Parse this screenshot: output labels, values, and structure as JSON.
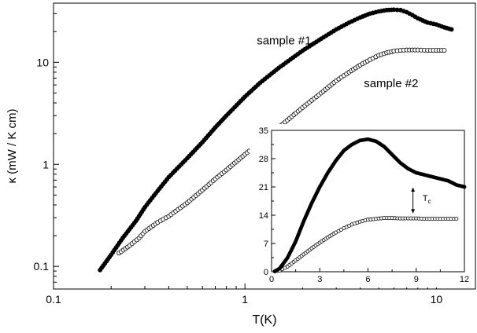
{
  "chart_data": [
    {
      "type": "scatter",
      "xscale": "log",
      "yscale": "log",
      "xlim": [
        0.1,
        16
      ],
      "ylim": [
        0.06,
        38
      ],
      "xlabel": "T(K)",
      "ylabel": "κ (mW / K cm)",
      "xticks": [
        0.1,
        1,
        10
      ],
      "xtick_labels": [
        "0.1",
        "1",
        "10"
      ],
      "yticks": [
        0.1,
        1,
        10
      ],
      "ytick_labels": [
        "0.1",
        "1",
        "10"
      ],
      "grid": false,
      "legend": "none",
      "series": [
        {
          "name": "sample #1",
          "marker": "filled-circle",
          "x": [
            0.175,
            0.2,
            0.23,
            0.27,
            0.3,
            0.35,
            0.4,
            0.5,
            0.6,
            0.7,
            0.8,
            1.0,
            1.2,
            1.5,
            2.0,
            2.5,
            3.0,
            3.5,
            4.0,
            4.5,
            5.0,
            5.5,
            6.0,
            6.5,
            7.0,
            7.5,
            8.0,
            9.0,
            10.0,
            11.0,
            12.0
          ],
          "y": [
            0.092,
            0.13,
            0.19,
            0.28,
            0.38,
            0.55,
            0.75,
            1.15,
            1.65,
            2.3,
            3.0,
            4.6,
            6.3,
            8.8,
            13.0,
            17.0,
            21.0,
            24.5,
            27.5,
            30.0,
            31.5,
            32.5,
            32.8,
            32.5,
            31.0,
            29.0,
            27.0,
            24.5,
            23.5,
            22.0,
            21.0
          ]
        },
        {
          "name": "sample #2",
          "marker": "open-circle",
          "x": [
            0.22,
            0.25,
            0.28,
            0.3,
            0.35,
            0.4,
            0.5,
            0.6,
            0.7,
            0.8,
            1.0,
            1.2,
            1.5,
            2.0,
            2.5,
            3.0,
            3.5,
            4.0,
            4.5,
            5.0,
            5.5,
            6.0,
            6.5,
            7.0,
            8.0,
            9.0,
            10.0,
            11.0
          ],
          "y": [
            0.135,
            0.16,
            0.19,
            0.22,
            0.27,
            0.31,
            0.42,
            0.56,
            0.72,
            0.88,
            1.25,
            1.65,
            2.3,
            3.6,
            5.0,
            6.6,
            8.0,
            9.4,
            10.6,
            11.7,
            12.4,
            12.9,
            13.1,
            13.2,
            13.2,
            13.1,
            13.1,
            13.1
          ]
        }
      ],
      "annotations": [
        {
          "text": "sample #1",
          "x": 1.6,
          "y": 15
        },
        {
          "text": "sample #2",
          "x": 5.8,
          "y": 5.7
        }
      ]
    },
    {
      "type": "scatter",
      "inset": true,
      "xscale": "linear",
      "yscale": "linear",
      "xlim": [
        0,
        12
      ],
      "ylim": [
        0,
        35
      ],
      "xticks": [
        0,
        3,
        6,
        9,
        12
      ],
      "xtick_labels": [
        "0",
        "3",
        "6",
        "9",
        "12"
      ],
      "yticks": [
        0,
        7,
        14,
        21,
        28,
        35
      ],
      "ytick_labels": [
        "0",
        "7",
        "14",
        "21",
        "28",
        "35"
      ],
      "grid": false,
      "series": [
        {
          "name": "sample #1",
          "marker": "filled-circle",
          "x": [
            0.2,
            0.5,
            1,
            1.5,
            2,
            2.5,
            3,
            3.5,
            4,
            4.5,
            5,
            5.5,
            6,
            6.5,
            7,
            7.5,
            8,
            8.5,
            9,
            9.5,
            10,
            10.5,
            11,
            11.5,
            12
          ],
          "y": [
            0.1,
            0.8,
            3.5,
            7.5,
            12.5,
            17,
            21,
            24.5,
            27.5,
            30,
            31.5,
            32.5,
            32.8,
            32.3,
            31,
            29,
            27,
            25.5,
            24.5,
            24,
            23.5,
            23,
            22.5,
            21.5,
            21
          ]
        },
        {
          "name": "sample #2",
          "marker": "open-circle",
          "x": [
            0.2,
            0.5,
            1,
            1.5,
            2,
            2.5,
            3,
            3.5,
            4,
            4.5,
            5,
            5.5,
            6,
            6.5,
            7,
            7.5,
            8,
            8.5,
            9,
            9.5,
            10,
            10.5,
            11,
            11.5
          ],
          "y": [
            0.1,
            0.3,
            1.3,
            2.8,
            4.3,
            5.8,
            7.2,
            8.5,
            9.7,
            10.8,
            11.7,
            12.4,
            12.9,
            13.1,
            13.3,
            13.3,
            13.2,
            13.2,
            13.2,
            13.1,
            13.1,
            13.1,
            13.1,
            13.1
          ]
        }
      ],
      "annotations": [
        {
          "text": "T",
          "subscript": "c",
          "x": 9.4,
          "y": 17.5
        }
      ],
      "arrow": {
        "x": 8.8,
        "y_from": 14.5,
        "y_to": 20.8
      }
    }
  ]
}
